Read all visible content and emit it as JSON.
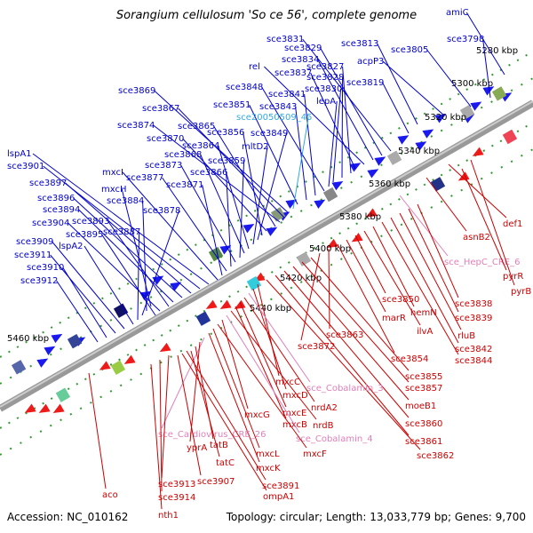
{
  "title": "Sorangium cellulosum 'So ce 56', complete genome",
  "footer": {
    "accession": "Accession: NC_010162",
    "summary": "Topology: circular; Length: 13,033,779 bp; Genes: 9,700"
  },
  "colors": {
    "forward_label": "#0000cc",
    "reverse_label": "#cc0000",
    "misc_label": "#e080b8",
    "misc_label_blue": "#33aadd",
    "backbone": "#888888",
    "tick": "#339933",
    "forward_arrow": "#1a1aee",
    "reverse_arrow": "#ee1a1a"
  },
  "scale": [
    "5280 kbp",
    "5300 kbp",
    "5320 kbp",
    "5340 kbp",
    "5360 kbp",
    "5380 kbp",
    "5400 kbp",
    "5420 kbp",
    "5440 kbp",
    "5460 kbp"
  ],
  "top_labels": [
    "amiC",
    "sce3798",
    "sce3805",
    "acpP3",
    "sce3813",
    "sce3819",
    "sce3831",
    "sce3829",
    "sce3834",
    "rel",
    "sce3837",
    "sce3827",
    "sce3828",
    "sce3830",
    "lepA",
    "sce3848",
    "sce3841",
    "sce3843",
    "sce3851",
    "sce20050509_45",
    "sce3869",
    "sce3867",
    "sce3874",
    "sce3865",
    "sce3870",
    "sce3856",
    "sce3849",
    "mltD2",
    "sce3864",
    "sce3868",
    "sce3859",
    "sce3873",
    "sce3866",
    "sce3877",
    "sce3871",
    "mxcI",
    "lspA1",
    "sce3901",
    "sce3897",
    "sce3896",
    "sce3894",
    "sce3893",
    "sce3904",
    "sce3895",
    "mxcH",
    "sce3884",
    "sce3878",
    "sce3887",
    "lspA2",
    "sce3909",
    "sce3911",
    "sce3910",
    "sce3912"
  ],
  "bottom_labels": [
    "def1",
    "asnB2",
    "sce_HepC_CRE_6",
    "pyrR",
    "pyrB",
    "sce3838",
    "sce3839",
    "rluB",
    "sce3842",
    "sce3844",
    "hemN",
    "ilvA",
    "sce3850",
    "marR",
    "sce3854",
    "sce3863",
    "sce3872",
    "sce3855",
    "sce3857",
    "moeB1",
    "sce3860",
    "sce3861",
    "sce3862",
    "mxcC",
    "mxcD",
    "sce_Cobalamin_3",
    "nrdA2",
    "mxcE",
    "mxcB",
    "nrdB",
    "sce_Cobalamin_4",
    "mxcG",
    "mxcF",
    "mxcL",
    "mxcK",
    "sce_Cardiovirus_CRE_26",
    "yprA",
    "tatB",
    "tatC",
    "sce3913",
    "sce3907",
    "sce3914",
    "sce3891",
    "ompA1",
    "aco",
    "nth1"
  ]
}
